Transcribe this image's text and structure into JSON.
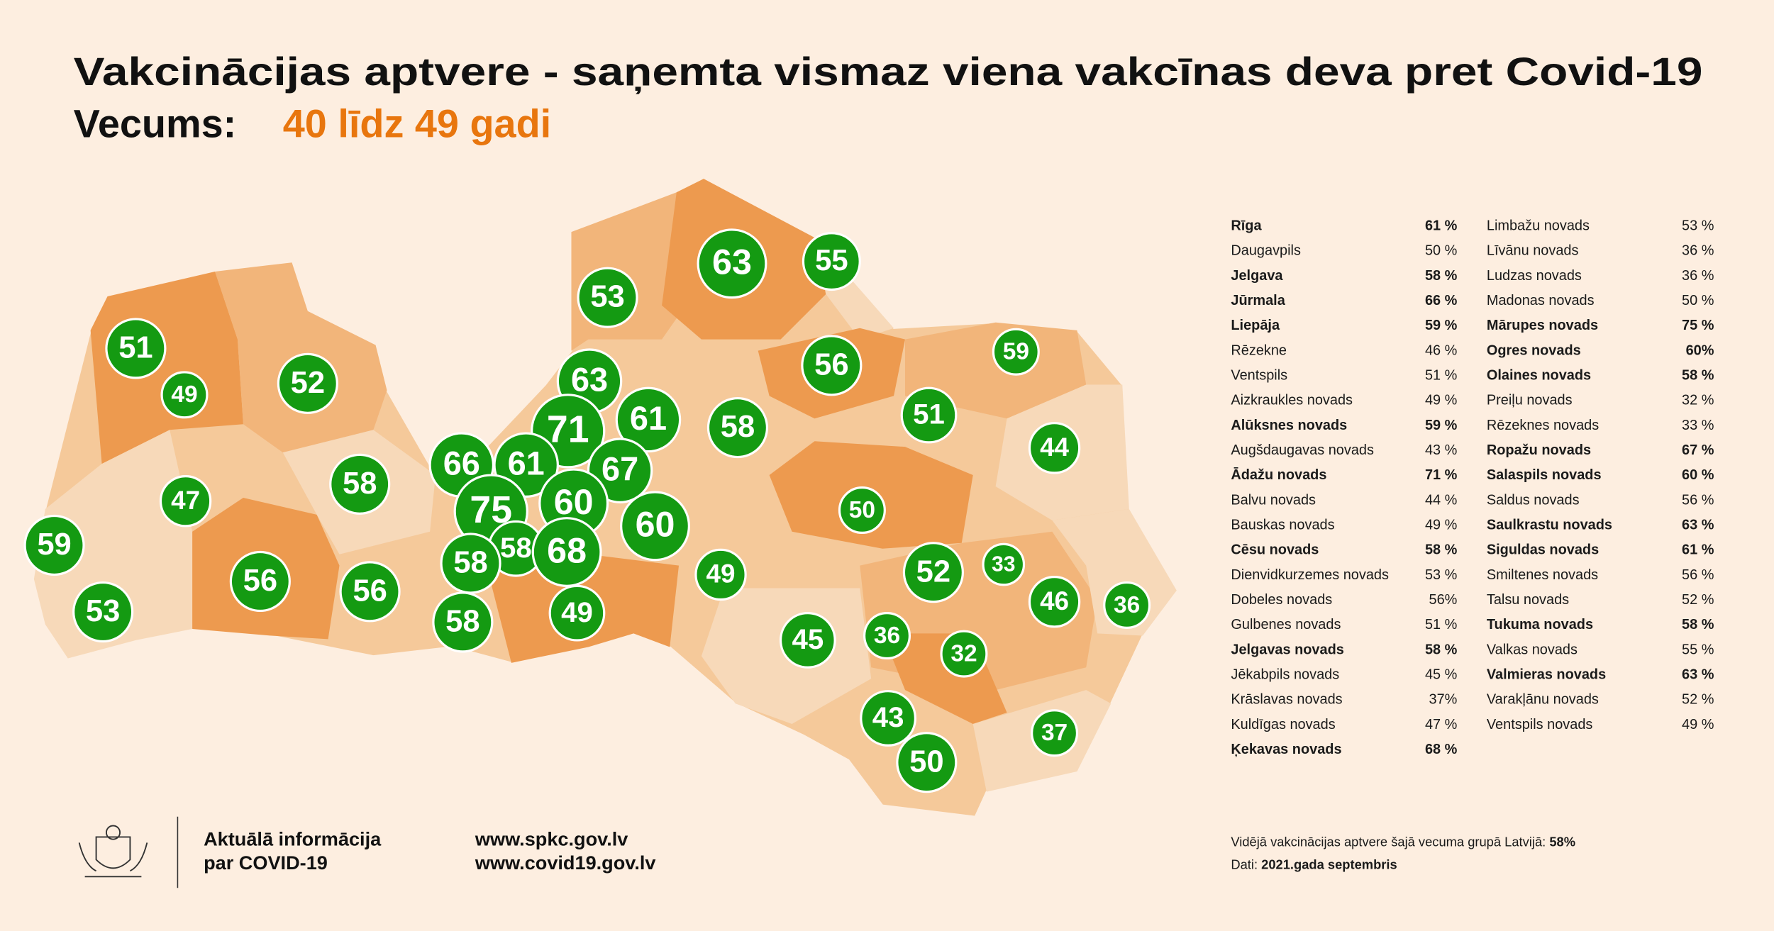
{
  "header": {
    "title": "Vakcinācijas aptvere - saņemta vismaz viena vakcīnas deva pret Covid-19",
    "age_label": "Vecums:",
    "age_value": "40 līdz 49 gadi"
  },
  "map": {
    "labels": [
      51,
      49,
      52,
      53,
      63,
      55,
      63,
      61,
      71,
      58,
      56,
      59,
      51,
      44,
      66,
      61,
      67,
      47,
      58,
      75,
      60,
      60,
      50,
      59,
      58,
      68,
      58,
      49,
      52,
      33,
      56,
      56,
      46,
      36,
      53,
      58,
      49,
      45,
      36,
      32,
      43,
      37,
      50
    ]
  },
  "table": {
    "columns": [
      [
        {
          "name": "Rīga",
          "value": "61 %",
          "bold": true
        },
        {
          "name": "Daugavpils",
          "value": "50 %",
          "bold": false
        },
        {
          "name": "Jelgava",
          "value": "58 %",
          "bold": true
        },
        {
          "name": "Jūrmala",
          "value": "66 %",
          "bold": true
        },
        {
          "name": "Liepāja",
          "value": "59 %",
          "bold": true
        },
        {
          "name": "Rēzekne",
          "value": "46 %",
          "bold": false
        },
        {
          "name": "Ventspils",
          "value": "51 %",
          "bold": false
        },
        {
          "name": "Aizkraukles novads",
          "value": "49 %",
          "bold": false
        },
        {
          "name": "Alūksnes novads",
          "value": "59 %",
          "bold": true
        },
        {
          "name": "Augšdaugavas novads",
          "value": "43 %",
          "bold": false
        },
        {
          "name": "Ādažu novads",
          "value": "71 %",
          "bold": true
        },
        {
          "name": "Balvu novads",
          "value": "44 %",
          "bold": false
        },
        {
          "name": "Bauskas novads",
          "value": "49 %",
          "bold": false
        },
        {
          "name": "Cēsu novads",
          "value": "58 %",
          "bold": true
        },
        {
          "name": "Dienvidkurzemes novads",
          "value": "53 %",
          "bold": false
        },
        {
          "name": "Dobeles novads",
          "value": "56%",
          "bold": false
        },
        {
          "name": "Gulbenes novads",
          "value": "51 %",
          "bold": false
        },
        {
          "name": "Jelgavas novads",
          "value": "58 %",
          "bold": true
        },
        {
          "name": "Jēkabpils novads",
          "value": "45 %",
          "bold": false
        },
        {
          "name": "Krāslavas novads",
          "value": "37%",
          "bold": false
        },
        {
          "name": "Kuldīgas novads",
          "value": "47 %",
          "bold": false
        },
        {
          "name": "Ķekavas novads",
          "value": "68 %",
          "bold": true
        }
      ],
      [
        {
          "name": "Limbažu novads",
          "value": "53 %",
          "bold": false
        },
        {
          "name": "Līvānu novads",
          "value": "36 %",
          "bold": false
        },
        {
          "name": "Ludzas novads",
          "value": "36 %",
          "bold": false
        },
        {
          "name": "Madonas novads",
          "value": "50 %",
          "bold": false
        },
        {
          "name": "Mārupes novads",
          "value": "75 %",
          "bold": true
        },
        {
          "name": "Ogres novads",
          "value": "60%",
          "bold": true
        },
        {
          "name": "Olaines novads",
          "value": "58 %",
          "bold": true
        },
        {
          "name": "Preiļu novads",
          "value": "32 %",
          "bold": false
        },
        {
          "name": "Rēzeknes novads",
          "value": "33 %",
          "bold": false
        },
        {
          "name": "Ropažu novads",
          "value": "67 %",
          "bold": true
        },
        {
          "name": "Salaspils novads",
          "value": "60 %",
          "bold": true
        },
        {
          "name": "Saldus novads",
          "value": "56 %",
          "bold": false
        },
        {
          "name": "Saulkrastu novads",
          "value": "63 %",
          "bold": true
        },
        {
          "name": "Siguldas novads",
          "value": "61 %",
          "bold": true
        },
        {
          "name": "Smiltenes novads",
          "value": "56 %",
          "bold": false
        },
        {
          "name": "Talsu novads",
          "value": "52 %",
          "bold": false
        },
        {
          "name": "Tukuma novads",
          "value": "58 %",
          "bold": true
        },
        {
          "name": "Valkas novads",
          "value": "55 %",
          "bold": false
        },
        {
          "name": "Valmieras novads",
          "value": "63 %",
          "bold": true
        },
        {
          "name": "Varakļānu novads",
          "value": "52 %",
          "bold": false
        },
        {
          "name": "Ventspils novads",
          "value": "49 %",
          "bold": false
        }
      ]
    ]
  },
  "footer": {
    "info_line1": "Aktuālā informācija",
    "info_line2": "par COVID-19",
    "url1": "www.spkc.gov.lv",
    "url2": "www.covid19.gov.lv",
    "average_text": "Vidējā vakcinācijas aptvere šajā vecuma grupā Latvijā:",
    "average_value": "58%",
    "date_label": "Dati:",
    "date_value": "2021.gada septembris"
  }
}
